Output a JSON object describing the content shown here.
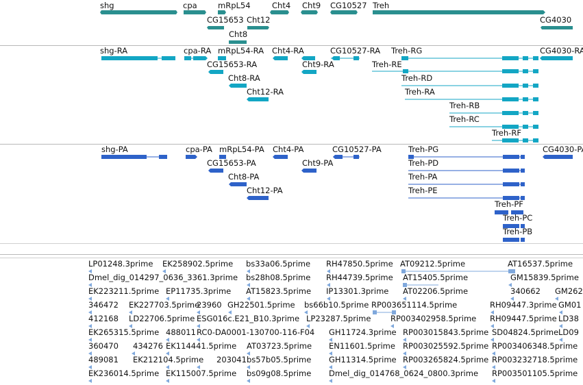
{
  "colors": {
    "gene": "#2a8f8f",
    "transcript": "#13a6c4",
    "protein": "#2e62c9",
    "est": "#7fa8dc",
    "separator": "#b8b8b8"
  },
  "gene_track": {
    "labels": [
      "shg",
      "cpa",
      "mRpL54",
      "Cht4",
      "Cht9",
      "CG10527",
      "Treh",
      "CG15653",
      "Cht12",
      "Cht8",
      "CG4030"
    ]
  },
  "transcript_track": {
    "labels": [
      "shg-RA",
      "cpa-RA",
      "mRpL54-RA",
      "Cht4-RA",
      "CG10527-RA",
      "Treh-RG",
      "CG4030-RA",
      "CG15653-RA",
      "Cht9-RA",
      "Treh-RE",
      "Treh-RD",
      "Cht8-RA",
      "Treh-RA",
      "Cht12-RA",
      "Treh-RB",
      "Treh-RC",
      "Treh-RF"
    ]
  },
  "protein_track": {
    "labels": [
      "shg-PA",
      "cpa-PA",
      "mRpL54-PA",
      "Cht4-PA",
      "CG10527-PA",
      "Treh-PG",
      "CG4030-PA",
      "CG15653-PA",
      "Cht9-PA",
      "Treh-PD",
      "Cht8-PA",
      "Treh-PA",
      "Cht12-PA",
      "Treh-PE",
      "Treh-PF",
      "Treh-PC",
      "Treh-PB"
    ]
  },
  "est_track": {
    "rows": [
      [
        "LP01248.3prime",
        "EK258902.5prime",
        "bs33a06.5prime",
        "RH47850.5prime",
        "AT09212.5prime",
        "AT16537.5prime"
      ],
      [
        "Dmel_dig_014297_0636_3361.3prime",
        "bs28h08.5prime",
        "RH44739.5prime",
        "AT15405.5prime",
        "GM15839.5prime"
      ],
      [
        "EK223211.5prime",
        "EP11735.3prime",
        "AT15823.5prime",
        "IP13301.3prime",
        "AT02206.5prime",
        "340662",
        "GM262"
      ],
      [
        "346472",
        "EK227703.5prime",
        "23960",
        "GH22501.5prime",
        "bs66b10.5prime",
        "RP003651114.5prime",
        "RH09447.3prime",
        "GM01"
      ],
      [
        "412168",
        "LD22706.5prime",
        "ESG016c.E21_B10.3prime",
        "LP23287.5prime",
        "RP003402958.5prime",
        "RH09447.5prime",
        "LD38"
      ],
      [
        "EK265315.5prime",
        "488011",
        "RC0-DA0001-130700-116-F04",
        "GH11724.3prime",
        "RP003015843.5prime",
        "SD04824.5prime",
        "LD09"
      ],
      [
        "360470",
        "434276",
        "EK114441.5prime",
        "AT03723.5prime",
        "EN11601.5prime",
        "RP003025592.5prime",
        "RP003406348.5prime"
      ],
      [
        "489081",
        "EK212104.5prime",
        "203041",
        "bs57b05.5prime",
        "GH11314.5prime",
        "RP003265824.5prime",
        "RP003232718.5prime"
      ],
      [
        "EK236014.5prime",
        "EK115007.5prime",
        "bs09g08.5prime",
        "Dmel_dig_014768_0624_0800.3prime",
        "RP003501105.5prime"
      ]
    ]
  }
}
